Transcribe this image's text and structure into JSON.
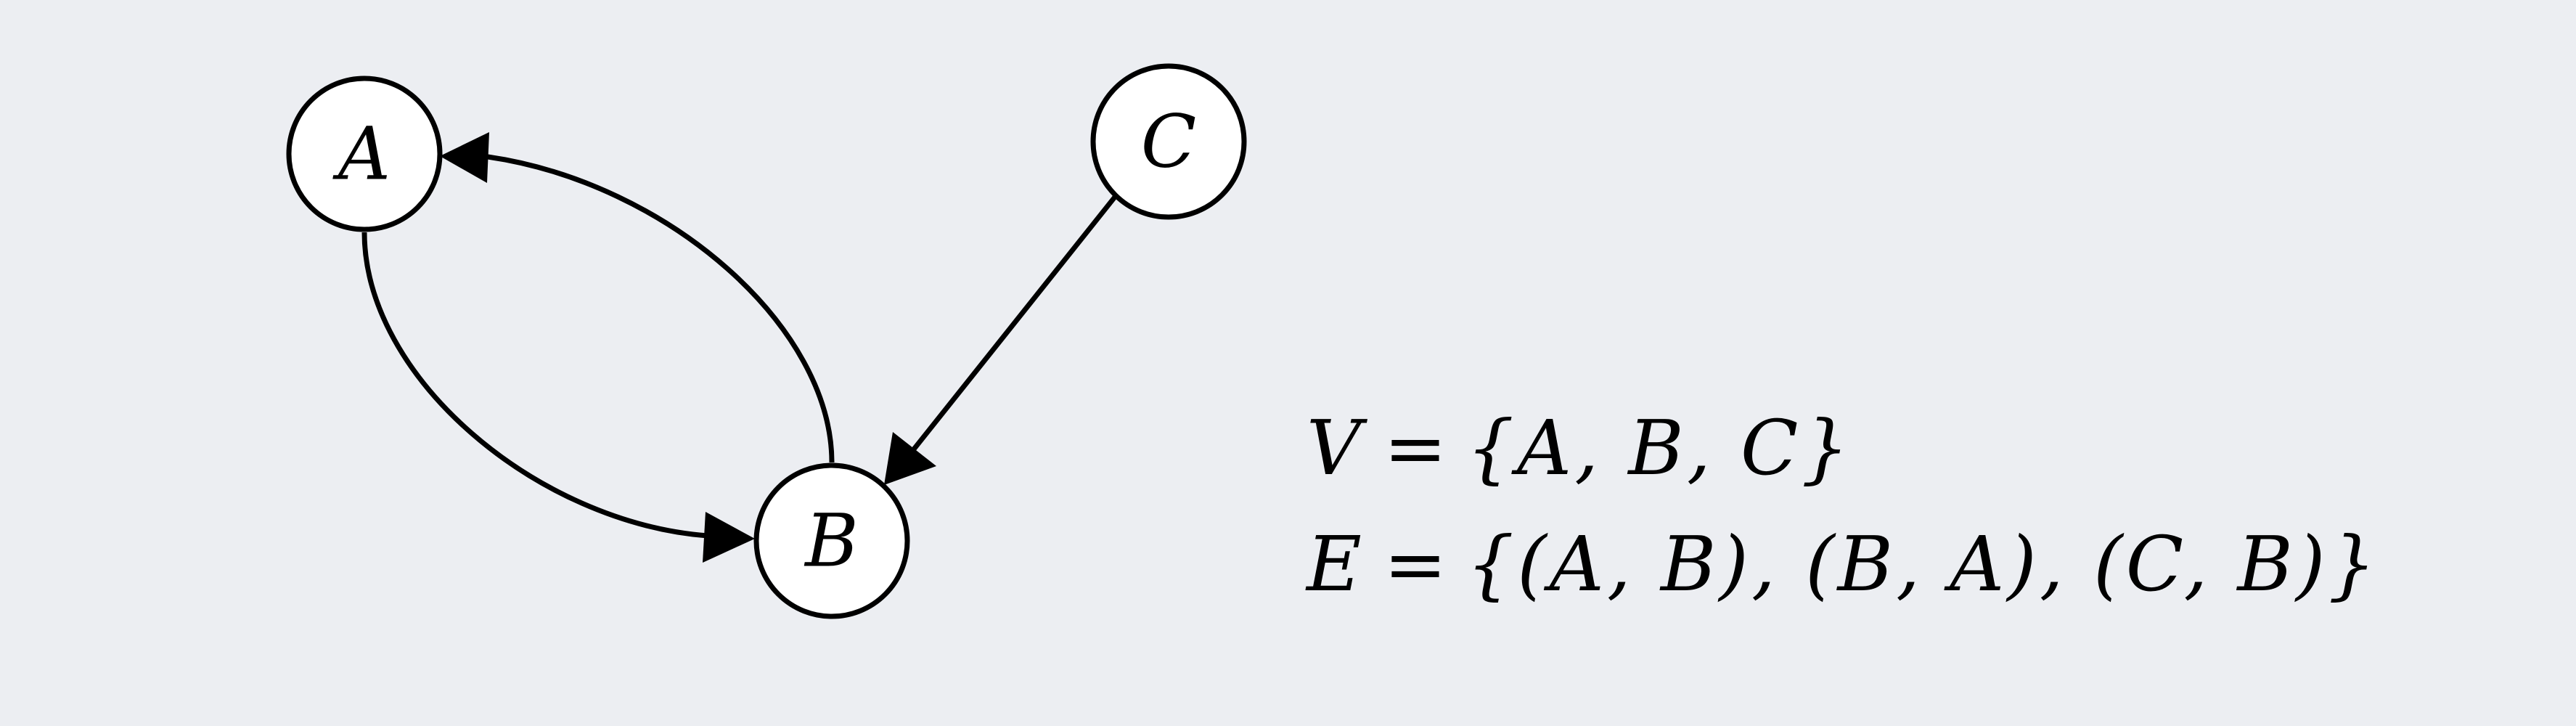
{
  "graph": {
    "nodes": [
      {
        "id": "A",
        "label": "A"
      },
      {
        "id": "B",
        "label": "B"
      },
      {
        "id": "C",
        "label": "C"
      }
    ],
    "edges": [
      {
        "from": "A",
        "to": "B"
      },
      {
        "from": "B",
        "to": "A"
      },
      {
        "from": "C",
        "to": "B"
      }
    ],
    "style": {
      "node_fill": "#ffffff",
      "stroke": "#000000",
      "background": "#eceef2"
    }
  },
  "formulas": {
    "vertex_set": {
      "lhs": "V",
      "equals": "=",
      "rhs": "{A, B, C}"
    },
    "edge_set": {
      "lhs": "E",
      "equals": "=",
      "rhs": "{(A, B), (B, A), (C, B)}"
    }
  }
}
